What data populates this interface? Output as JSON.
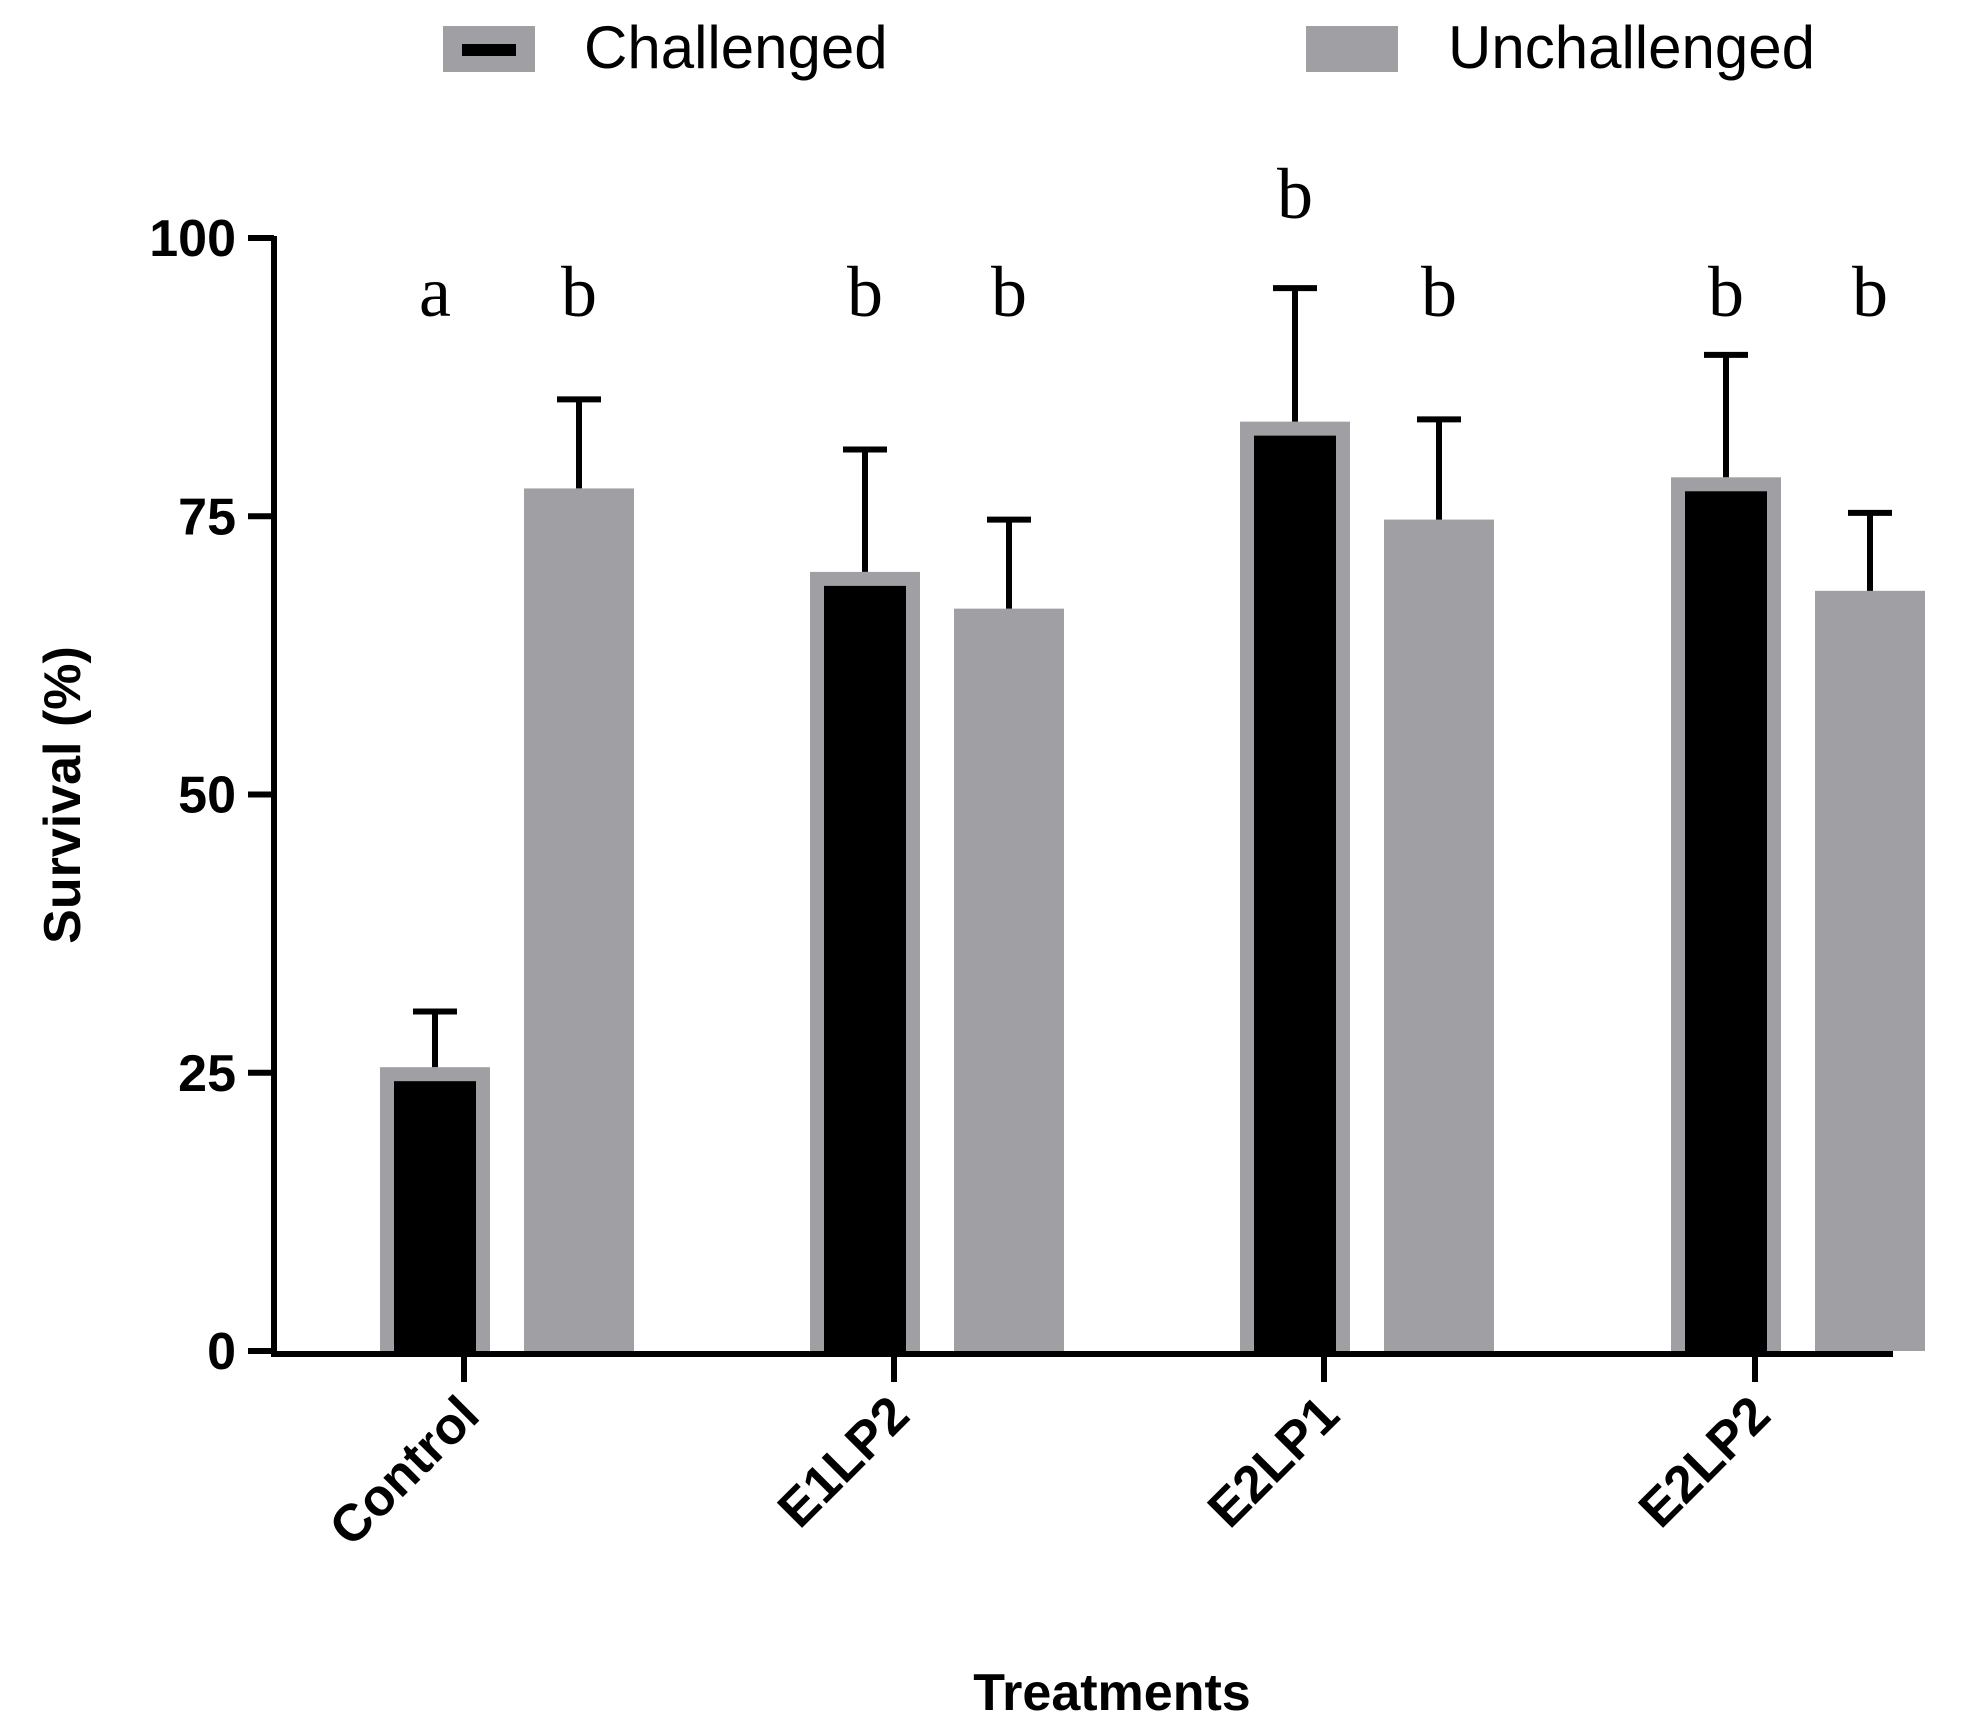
{
  "chart_data": {
    "type": "bar",
    "title": "",
    "xlabel": "Treatments",
    "ylabel": "Survival (%)",
    "ylim": [
      0,
      100
    ],
    "yticks": [
      "0",
      "25",
      "50",
      "75",
      "100"
    ],
    "categories": [
      "Control",
      "E1LP2",
      "E2LP1",
      "E2LP2"
    ],
    "series": [
      {
        "name": "Challenged",
        "values": [
          25.5,
          70,
          83.5,
          78.5
        ],
        "errors": [
          5,
          11,
          12,
          11
        ],
        "significance": [
          "a",
          "b",
          "b",
          "b"
        ],
        "fill_color": "#000000",
        "border_color": "#a0a0a4"
      },
      {
        "name": "Unchallenged",
        "values": [
          77.5,
          66.7,
          74.7,
          68.3
        ],
        "errors": [
          8,
          8,
          9,
          7
        ],
        "significance": [
          "b",
          "b",
          "b",
          "b"
        ],
        "fill_color": "#a0a0a4"
      }
    ],
    "legend": {
      "position": "top",
      "entries": [
        "Challenged",
        "Unchallenged"
      ]
    },
    "grid": false
  }
}
